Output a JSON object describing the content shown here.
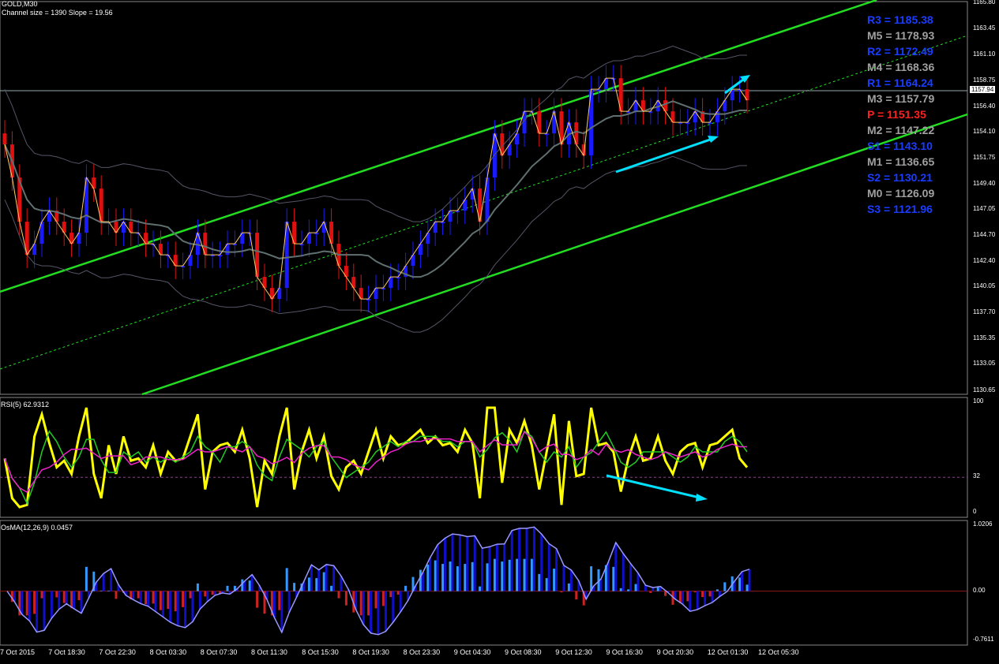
{
  "chart_data": [
    {
      "type": "candlestick",
      "title": "GOLD,M30",
      "subtitle": "Channel size = 1390  Slope = 19.56",
      "price_ticks": [
        "1165.80",
        "1163.45",
        "1161.10",
        "1158.75",
        "1156.40",
        "1154.10",
        "1151.75",
        "1149.40",
        "1147.05",
        "1144.70",
        "1142.40",
        "1140.05",
        "1137.70",
        "1135.35",
        "1133.05",
        "1130.65"
      ],
      "ylim": [
        1130.65,
        1165.8
      ],
      "current_price": "1157.94",
      "pivots": [
        {
          "label": "R3 = 1185.38",
          "color": "#1a3cff"
        },
        {
          "label": "M5 = 1178.93",
          "color": "#a0a0a0"
        },
        {
          "label": "R2 = 1172.49",
          "color": "#1a3cff"
        },
        {
          "label": "M4 = 1168.36",
          "color": "#a0a0a0"
        },
        {
          "label": "R1 = 1164.24",
          "color": "#1a3cff"
        },
        {
          "label": "M3 = 1157.79",
          "color": "#a0a0a0"
        },
        {
          "label": "P   = 1151.35",
          "color": "#ff2020"
        },
        {
          "label": "M2 = 1147.22",
          "color": "#a0a0a0"
        },
        {
          "label": "S1 = 1143.10",
          "color": "#1a3cff"
        },
        {
          "label": "M1 = 1136.65",
          "color": "#a0a0a0"
        },
        {
          "label": "S2 = 1130.21",
          "color": "#1a3cff"
        },
        {
          "label": "M0 = 1126.09",
          "color": "#a0a0a0"
        },
        {
          "label": "S3 = 1121.96",
          "color": "#1a3cff"
        }
      ],
      "closes": [
        1153,
        1150,
        1146,
        1143,
        1144,
        1146,
        1147,
        1146,
        1145,
        1144,
        1145,
        1150,
        1149,
        1146,
        1146,
        1145,
        1146,
        1145,
        1145,
        1144,
        1144,
        1143,
        1143,
        1142,
        1142,
        1143,
        1145,
        1143,
        1143,
        1143,
        1144,
        1144,
        1145,
        1145,
        1141,
        1140,
        1139,
        1140,
        1146,
        1144,
        1144,
        1145,
        1145,
        1146,
        1144,
        1142,
        1141,
        1140,
        1139,
        1139,
        1140,
        1140,
        1141,
        1141,
        1142,
        1143,
        1144,
        1145,
        1146,
        1146,
        1147,
        1147,
        1148,
        1149,
        1146,
        1150,
        1154,
        1152,
        1153,
        1154,
        1156,
        1156,
        1154,
        1154,
        1156,
        1153,
        1155,
        1153,
        1152,
        1158,
        1158,
        1159,
        1159,
        1156,
        1156,
        1157,
        1156,
        1156,
        1157,
        1156,
        1155,
        1155,
        1155,
        1156,
        1155,
        1155,
        1156,
        1157,
        1158,
        1158,
        1157
      ]
    },
    {
      "type": "line",
      "title": "RSI(5) 62.9312",
      "ylim": [
        0,
        100
      ],
      "ticks": [
        "100",
        "32",
        "0"
      ],
      "level": 32
    },
    {
      "type": "bar",
      "title": "OsMA(12,26,9) 0.0457",
      "ticks": [
        "1.0206",
        "0.00",
        "-0.7611"
      ],
      "ylim": [
        -0.7611,
        1.0206
      ]
    }
  ],
  "time_labels": [
    "7 Oct 2015",
    "7 Oct 18:30",
    "7 Oct 22:30",
    "8 Oct 03:30",
    "8 Oct 07:30",
    "8 Oct 11:30",
    "8 Oct 15:30",
    "8 Oct 19:30",
    "8 Oct 23:30",
    "9 Oct 04:30",
    "9 Oct 08:30",
    "9 Oct 12:30",
    "9 Oct 16:30",
    "9 Oct 20:30",
    "12 Oct 01:30",
    "12 Oct 05:30"
  ],
  "colors": {
    "bull": "#1a1aff",
    "bear": "#e01010",
    "channel": "#22dd22",
    "rsi": "#ffff00",
    "arrow": "#00e0ff",
    "osma_pos": "#3399ff",
    "osma_neg": "#cc2222"
  }
}
